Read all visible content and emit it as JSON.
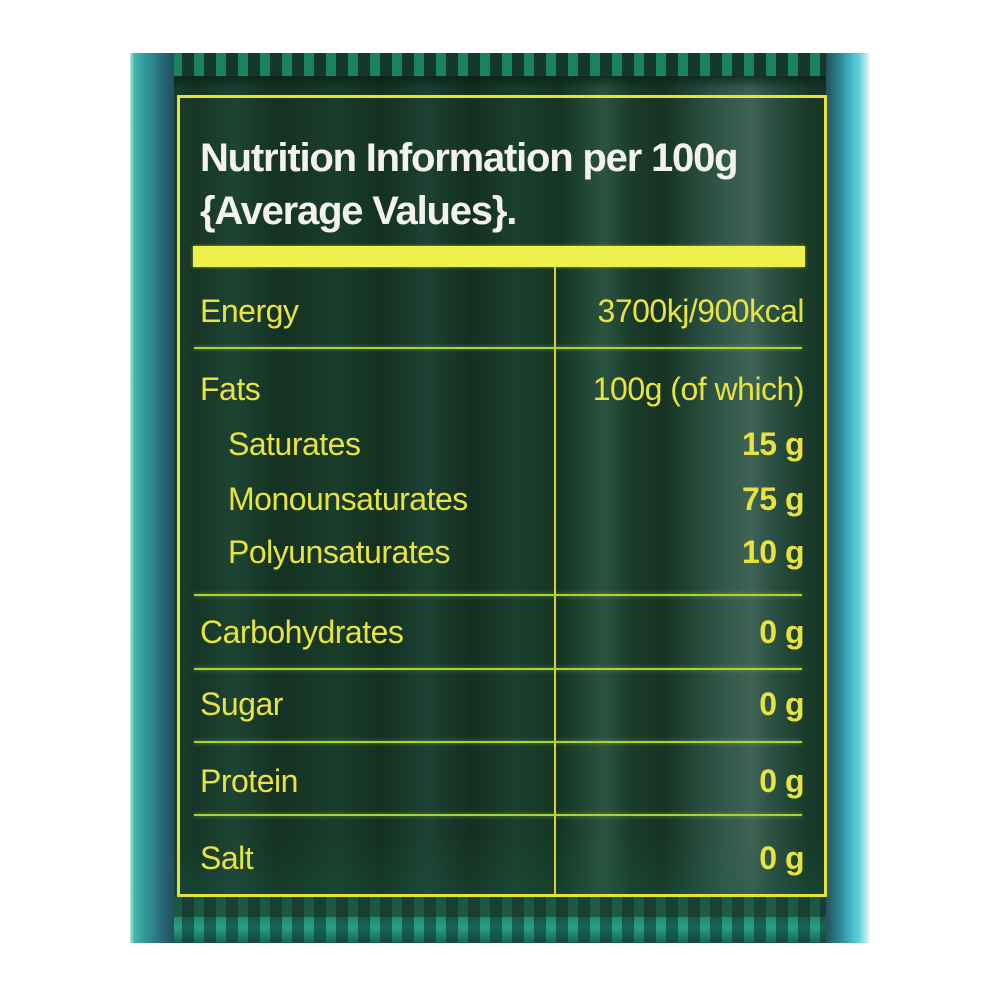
{
  "table": {
    "title_line1": "Nutrition Information per 100g",
    "title_line2": "{Average Values}.",
    "rows": [
      {
        "label": "Energy",
        "value": "3700kj/900kcal"
      },
      {
        "label": "Fats",
        "value": "100g (of which)"
      },
      {
        "label": "Saturates",
        "value": "15 g"
      },
      {
        "label": "Monounsaturates",
        "value": "75 g"
      },
      {
        "label": "Polyunsaturates",
        "value": "10 g"
      },
      {
        "label": "Carbohydrates",
        "value": "0 g"
      },
      {
        "label": "Sugar",
        "value": "0 g"
      },
      {
        "label": "Protein",
        "value": "0 g"
      },
      {
        "label": "Salt",
        "value": "0 g"
      }
    ]
  },
  "colors": {
    "text_yellow": "#e8e340",
    "border_yellow": "#e5e13d",
    "bar_yellow": "#eef149",
    "separator_green": "#a9d433",
    "title_white": "#f3f3ec",
    "bg_white": "#ffffff"
  }
}
